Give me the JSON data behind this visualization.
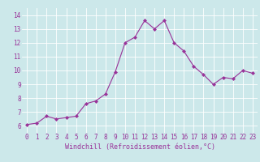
{
  "x": [
    0,
    1,
    2,
    3,
    4,
    5,
    6,
    7,
    8,
    9,
    10,
    11,
    12,
    13,
    14,
    15,
    16,
    17,
    18,
    19,
    20,
    21,
    22,
    23
  ],
  "y": [
    6.1,
    6.2,
    6.7,
    6.5,
    6.6,
    6.7,
    7.6,
    7.8,
    8.3,
    9.9,
    12.0,
    12.4,
    13.6,
    13.0,
    13.6,
    12.0,
    11.4,
    10.3,
    9.7,
    9.0,
    9.5,
    9.4,
    10.0,
    9.8
  ],
  "line_color": "#993399",
  "marker": "D",
  "marker_size": 2,
  "bg_color": "#cce8ea",
  "grid_color": "#ffffff",
  "xlabel": "Windchill (Refroidissement éolien,°C)",
  "xlabel_color": "#993399",
  "tick_color": "#993399",
  "xlim": [
    -0.5,
    23.5
  ],
  "ylim": [
    5.5,
    14.5
  ],
  "yticks": [
    6,
    7,
    8,
    9,
    10,
    11,
    12,
    13,
    14
  ],
  "xticks": [
    0,
    1,
    2,
    3,
    4,
    5,
    6,
    7,
    8,
    9,
    10,
    11,
    12,
    13,
    14,
    15,
    16,
    17,
    18,
    19,
    20,
    21,
    22,
    23
  ],
  "label_fontsize": 6,
  "tick_fontsize": 5.5,
  "linewidth": 0.8
}
